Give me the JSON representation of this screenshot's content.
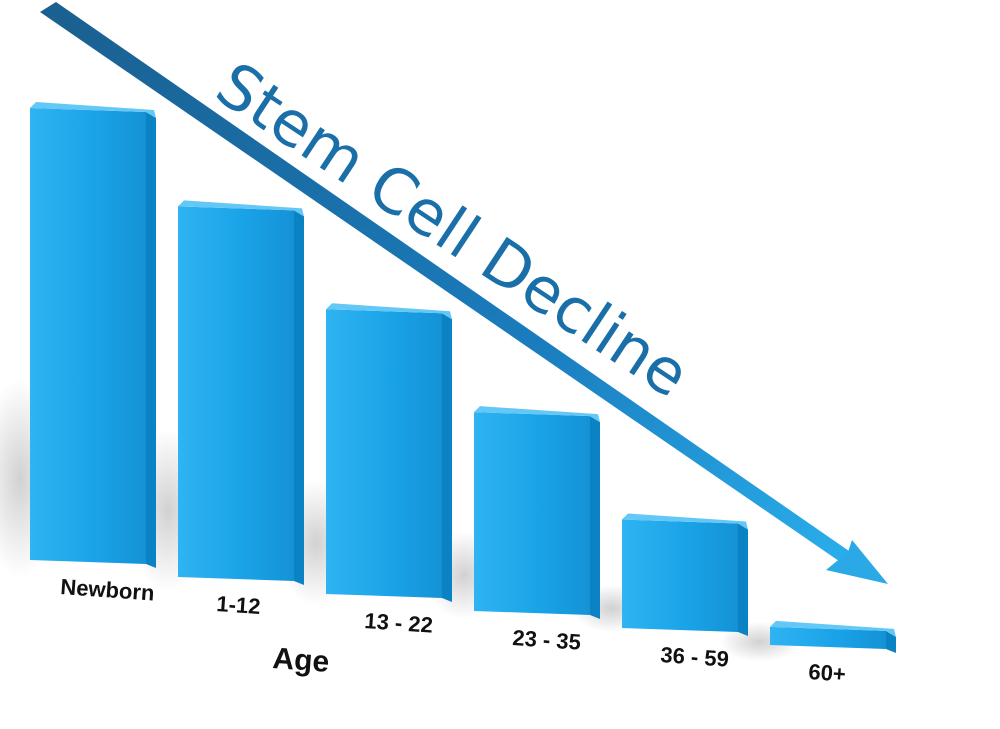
{
  "chart_data": {
    "type": "bar",
    "title": "Stem Cell Decline",
    "xlabel": "Age",
    "ylabel": "",
    "categories": [
      "Newborn",
      "1-12",
      "13 - 22",
      "23 - 35",
      "36 - 59",
      "60+"
    ],
    "values": [
      100,
      82,
      63,
      44,
      24,
      4
    ],
    "ylim": [
      0,
      100
    ],
    "grid": false,
    "legend": "none"
  },
  "colors": {
    "bar_front": "#1aa3e8",
    "bar_side": "#0b82c4",
    "bar_top": "#63c8f5",
    "trend_arrow": "#1a6fa8",
    "trend_arrow_tip": "#2aa9e6",
    "title": "#1a6fa8"
  }
}
